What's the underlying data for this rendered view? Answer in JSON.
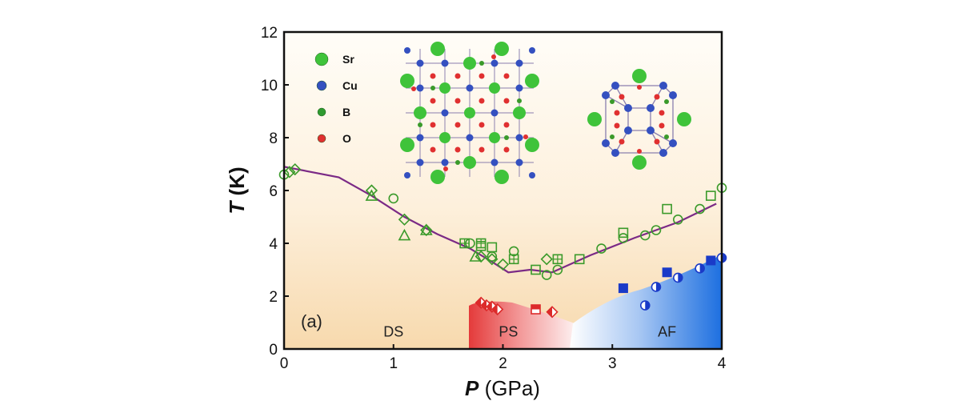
{
  "chart_data": {
    "type": "scatter",
    "panel_label": "(a)",
    "xlabel": {
      "italic": "P",
      "rest": " (GPa)"
    },
    "ylabel": {
      "italic": "T",
      "rest": " (K)"
    },
    "xlim": [
      0,
      4
    ],
    "ylim": [
      0,
      12
    ],
    "xticks": [
      "0",
      "1",
      "2",
      "3",
      "4"
    ],
    "yticks": [
      "0",
      "2",
      "4",
      "6",
      "8",
      "10",
      "12"
    ],
    "grid": false,
    "regions": [
      {
        "label": "DS",
        "x": 1.0,
        "y": 0.65
      },
      {
        "label": "PS",
        "x": 2.05,
        "y": 0.65
      },
      {
        "label": "AF",
        "x": 3.5,
        "y": 0.65
      }
    ],
    "boundary_line": {
      "color": "#7b2a86",
      "points": [
        [
          0.0,
          6.9
        ],
        [
          0.5,
          6.5
        ],
        [
          0.8,
          5.8
        ],
        [
          1.1,
          5.0
        ],
        [
          1.4,
          4.35
        ],
        [
          1.7,
          3.8
        ],
        [
          1.9,
          3.3
        ],
        [
          2.05,
          2.9
        ],
        [
          2.25,
          3.0
        ],
        [
          2.45,
          2.9
        ],
        [
          2.8,
          3.55
        ],
        [
          3.2,
          4.2
        ],
        [
          3.6,
          4.8
        ],
        [
          3.95,
          5.5
        ]
      ]
    },
    "legend": [
      {
        "label": "Sr",
        "color": "#3fc33a"
      },
      {
        "label": "Cu",
        "color": "#3450c0"
      },
      {
        "label": "B",
        "color": "#2f9a2f"
      },
      {
        "label": "O",
        "color": "#e03030"
      }
    ],
    "colors": {
      "dimer": "#3a9a2a",
      "plaquette": "#dc2a2a",
      "antiferro": "#1a3ac8"
    },
    "series": [
      {
        "marker": "circle-open",
        "group": "dimer",
        "points": [
          [
            0.0,
            6.6
          ],
          [
            1.0,
            5.7
          ],
          [
            1.7,
            4.0
          ],
          [
            1.9,
            3.5
          ],
          [
            2.1,
            3.7
          ],
          [
            2.4,
            2.8
          ],
          [
            2.5,
            3.0
          ],
          [
            2.9,
            3.8
          ],
          [
            3.1,
            4.2
          ],
          [
            3.3,
            4.3
          ],
          [
            3.4,
            4.5
          ],
          [
            3.6,
            4.9
          ],
          [
            3.8,
            5.3
          ],
          [
            4.0,
            6.1
          ]
        ]
      },
      {
        "marker": "diamond-open",
        "group": "dimer",
        "points": [
          [
            0.05,
            6.7
          ],
          [
            0.1,
            6.8
          ],
          [
            0.8,
            6.0
          ],
          [
            1.1,
            4.9
          ],
          [
            1.3,
            4.5
          ],
          [
            1.8,
            3.5
          ],
          [
            1.9,
            3.4
          ],
          [
            2.0,
            3.2
          ],
          [
            2.4,
            3.4
          ]
        ]
      },
      {
        "marker": "triangle-open",
        "group": "dimer",
        "points": [
          [
            0.8,
            5.8
          ],
          [
            1.1,
            4.3
          ],
          [
            1.3,
            4.5
          ],
          [
            1.75,
            3.5
          ]
        ]
      },
      {
        "marker": "square-open",
        "group": "dimer",
        "points": [
          [
            1.8,
            3.9
          ],
          [
            1.9,
            3.85
          ],
          [
            2.3,
            3.0
          ],
          [
            2.7,
            3.4
          ],
          [
            3.1,
            4.4
          ],
          [
            3.5,
            5.3
          ],
          [
            3.9,
            5.8
          ]
        ]
      },
      {
        "marker": "square-cross",
        "group": "dimer",
        "points": [
          [
            1.65,
            4.0
          ],
          [
            1.8,
            4.0
          ],
          [
            2.1,
            3.4
          ],
          [
            2.5,
            3.4
          ]
        ]
      },
      {
        "marker": "diamond-half",
        "group": "plaquette",
        "points": [
          [
            1.8,
            1.75
          ],
          [
            1.85,
            1.65
          ],
          [
            1.9,
            1.6
          ],
          [
            1.95,
            1.5
          ],
          [
            2.45,
            1.4
          ]
        ]
      },
      {
        "marker": "square-half",
        "group": "plaquette",
        "points": [
          [
            2.3,
            1.5
          ]
        ]
      },
      {
        "marker": "square-filled",
        "group": "antiferro",
        "points": [
          [
            3.1,
            2.3
          ],
          [
            3.5,
            2.9
          ],
          [
            3.9,
            3.35
          ]
        ]
      },
      {
        "marker": "circle-half",
        "group": "antiferro",
        "points": [
          [
            3.3,
            1.65
          ],
          [
            3.4,
            2.35
          ],
          [
            3.6,
            2.7
          ],
          [
            3.8,
            3.05
          ],
          [
            4.0,
            3.45
          ]
        ]
      }
    ]
  }
}
